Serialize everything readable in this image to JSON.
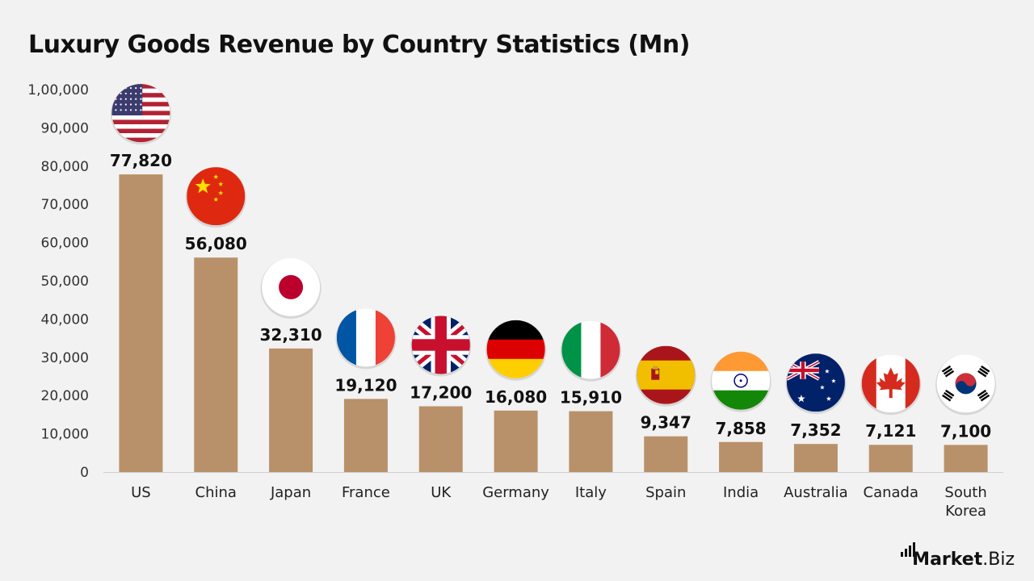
{
  "chart_data": {
    "type": "bar",
    "title": "Luxury Goods Revenue by Country Statistics (Mn)",
    "xlabel": "",
    "ylabel": "",
    "categories": [
      "US",
      "China",
      "Japan",
      "France",
      "UK",
      "Germany",
      "Italy",
      "Spain",
      "India",
      "Australia",
      "Canada",
      "South Korea"
    ],
    "values": [
      77820,
      56080,
      32310,
      19120,
      17200,
      16080,
      15910,
      9347,
      7858,
      7352,
      7121,
      7100
    ],
    "data_labels": [
      "77,820",
      "56,080",
      "32,310",
      "19,120",
      "17,200",
      "16,080",
      "15,910",
      "9,347",
      "7,858",
      "7,352",
      "7,121",
      "7,100"
    ],
    "flags": [
      "us-flag-icon",
      "china-flag-icon",
      "japan-flag-icon",
      "france-flag-icon",
      "uk-flag-icon",
      "germany-flag-icon",
      "italy-flag-icon",
      "spain-flag-icon",
      "india-flag-icon",
      "australia-flag-icon",
      "canada-flag-icon",
      "south-korea-flag-icon"
    ],
    "ylim": [
      0,
      100000
    ],
    "yticks": [
      0,
      10000,
      20000,
      30000,
      40000,
      50000,
      60000,
      70000,
      80000,
      90000,
      100000
    ],
    "ytick_labels": [
      "0",
      "10,000",
      "20,000",
      "30,000",
      "40,000",
      "50,000",
      "60,000",
      "70,000",
      "80,000",
      "90,000",
      "1,00,000"
    ],
    "grid": false,
    "legend": "none",
    "bar_color": "#b8916a"
  },
  "brand": {
    "name": "Market",
    "suffix": ".Biz"
  }
}
